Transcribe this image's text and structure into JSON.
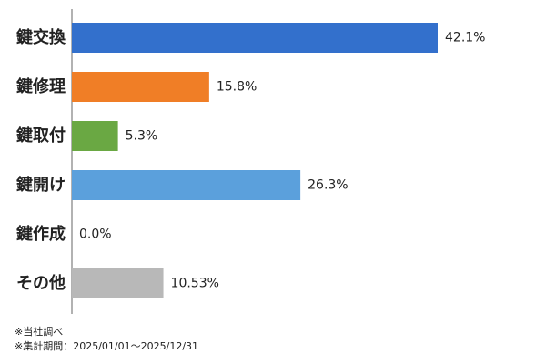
{
  "chart_data": {
    "type": "bar",
    "orientation": "horizontal",
    "categories": [
      "鍵交換",
      "鍵修理",
      "鍵取付",
      "鍵開け",
      "鍵作成",
      "その他"
    ],
    "values": [
      42.1,
      15.8,
      5.3,
      26.3,
      0.0,
      10.53
    ],
    "value_labels": [
      "42.1%",
      "15.8%",
      "5.3%",
      "26.3%",
      "0.0%",
      "10.53%"
    ],
    "colors": [
      "#3370cc",
      "#f07e26",
      "#6aa843",
      "#5ba0dc",
      "#999999",
      "#b8b8b8"
    ],
    "xlim": [
      0,
      50
    ],
    "grid": false,
    "legend": "none"
  },
  "notes": {
    "line1": "※当社調べ",
    "line2": "※集計期間：2025/01/01～2025/12/31"
  }
}
